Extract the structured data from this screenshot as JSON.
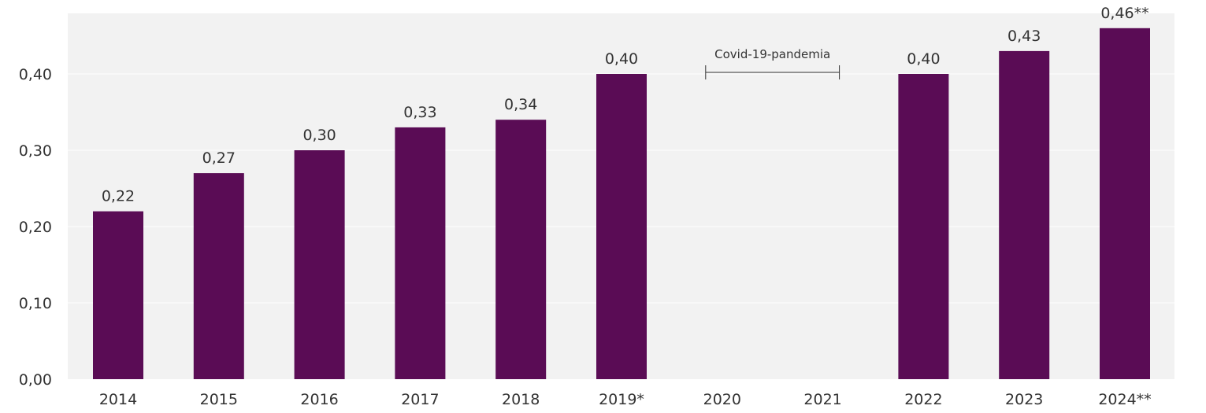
{
  "chart_data": {
    "type": "bar",
    "title": "",
    "xlabel": "",
    "ylabel": "",
    "categories": [
      "2014",
      "2015",
      "2016",
      "2017",
      "2018",
      "2019*",
      "2020",
      "2021",
      "2022",
      "2023",
      "2024**"
    ],
    "values": [
      0.22,
      0.27,
      0.3,
      0.33,
      0.34,
      0.4,
      null,
      null,
      0.4,
      0.43,
      0.46
    ],
    "value_labels": [
      "0,22",
      "0,27",
      "0,30",
      "0,33",
      "0,34",
      "0,40",
      "",
      "",
      "0,40",
      "0,43",
      "0,46**"
    ],
    "ylim": [
      0,
      0.48
    ],
    "yticks": [
      0,
      0.1,
      0.2,
      0.3,
      0.4
    ],
    "ytick_labels": [
      "0,00",
      "0,10",
      "0,20",
      "0,30",
      "0,40"
    ],
    "grid": true,
    "legend": "none",
    "annotation": {
      "text": "Covid-19-pandemia",
      "span": [
        "2020",
        "2021"
      ]
    },
    "colors": {
      "bar": "#5a0c55",
      "plot_background": "#f2f2f2",
      "gridline": "#ffffff",
      "text": "#333333"
    }
  }
}
